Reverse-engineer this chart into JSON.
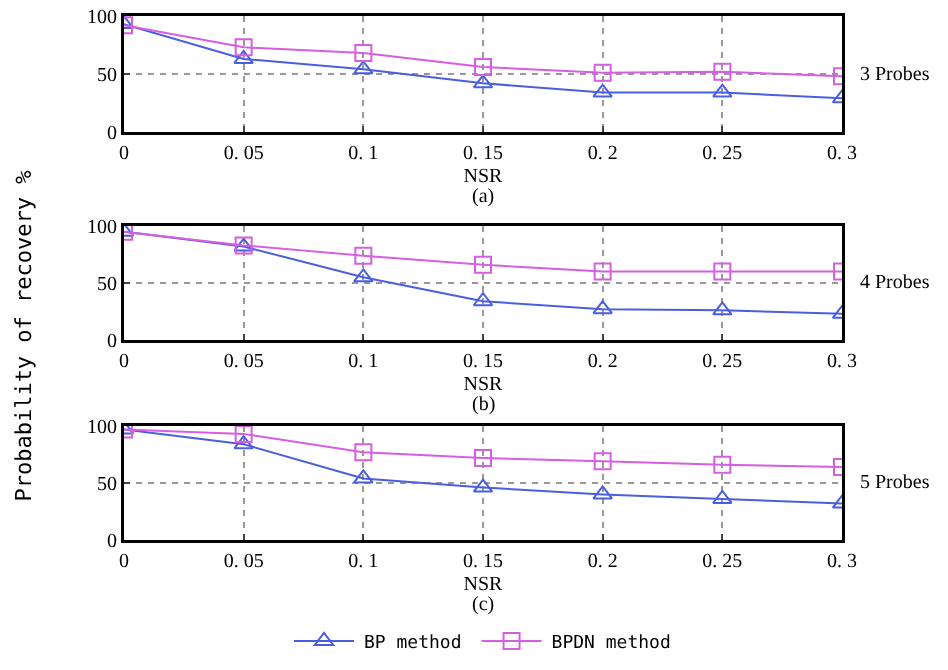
{
  "chart_data": [
    {
      "type": "line",
      "xlabel": "NSR",
      "categories": [
        "0",
        "0. 05",
        "0. 1",
        "0. 15",
        "0. 2",
        "0. 25",
        "0. 3"
      ],
      "ylim": [
        0,
        100
      ],
      "yticks": [
        0,
        50,
        100
      ],
      "grid": true,
      "line_style": "solid",
      "legend": false,
      "annotations": [
        "(a)",
        "3 Probes"
      ],
      "series": [
        {
          "color": "#4a5ee0",
          "marker": "triangle",
          "values": [
            93,
            63,
            54,
            42,
            34,
            34,
            29
          ]
        },
        {
          "color": "#d65ee0",
          "marker": "square",
          "values": [
            92,
            73,
            68,
            56,
            51,
            52,
            48
          ]
        }
      ]
    },
    {
      "type": "line",
      "xlabel": "NSR",
      "ylabel": "Probability of recovery %",
      "categories": [
        "0",
        "0. 05",
        "0. 1",
        "0. 15",
        "0. 2",
        "0. 25",
        "0. 3"
      ],
      "ylim": [
        0,
        100
      ],
      "yticks": [
        0,
        50,
        100
      ],
      "grid": true,
      "line_style": "solid",
      "legend": false,
      "annotations": [
        "(b)",
        "4 Probes"
      ],
      "series": [
        {
          "color": "#4a5ee0",
          "marker": "triangle",
          "values": [
            95,
            82,
            55,
            34,
            27,
            26,
            23
          ]
        },
        {
          "color": "#d65ee0",
          "marker": "square",
          "values": [
            95,
            83,
            74,
            66,
            60,
            60,
            60
          ]
        }
      ]
    },
    {
      "type": "line",
      "xlabel": "NSR",
      "categories": [
        "0",
        "0. 05",
        "0. 1",
        "0. 15",
        "0. 2",
        "0. 25",
        "0. 3"
      ],
      "ylim": [
        0,
        100
      ],
      "yticks": [
        0,
        50,
        100
      ],
      "grid": true,
      "line_style": "solid",
      "legend": "bottom",
      "annotations": [
        "(c)",
        "5 Probes"
      ],
      "series": [
        {
          "name": "BP method",
          "color": "#4a5ee0",
          "marker": "triangle",
          "values": [
            97,
            84,
            54,
            46,
            40,
            36,
            32
          ]
        },
        {
          "name": "BPDN method",
          "color": "#d65ee0",
          "marker": "square",
          "values": [
            97,
            93,
            77,
            72,
            69,
            66,
            64
          ]
        }
      ]
    }
  ]
}
